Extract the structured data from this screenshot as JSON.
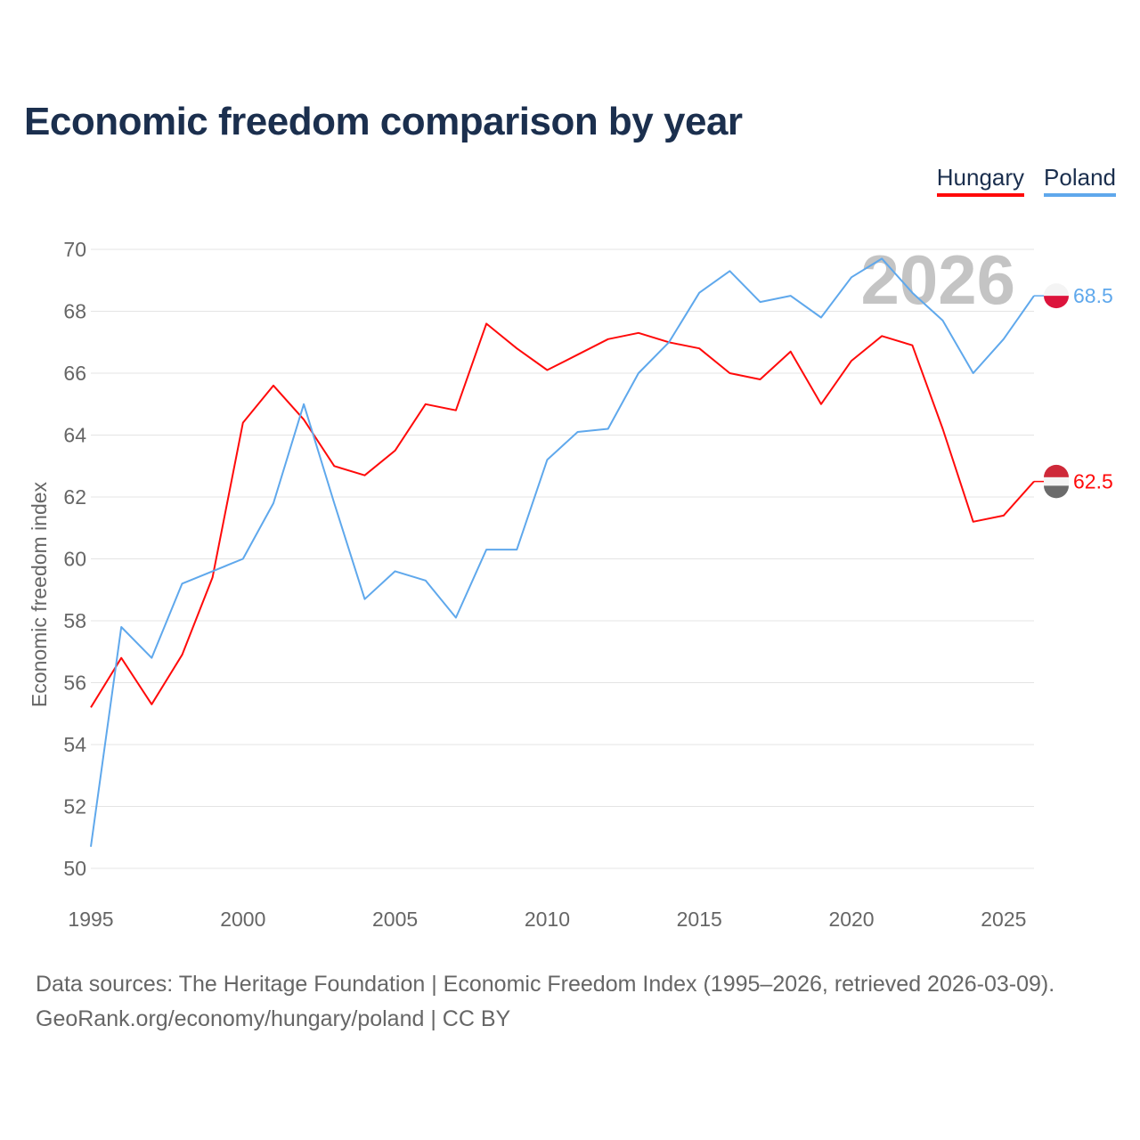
{
  "chart_data": {
    "type": "line",
    "title": "Economic freedom comparison by year",
    "xlabel": "",
    "ylabel": "Economic freedom index",
    "xlim": [
      1995,
      2026
    ],
    "ylim": [
      50,
      70
    ],
    "x_ticks": [
      1995,
      2000,
      2005,
      2010,
      2015,
      2020,
      2025
    ],
    "y_ticks": [
      50,
      52,
      54,
      56,
      58,
      60,
      62,
      64,
      66,
      68,
      70
    ],
    "grid": true,
    "legend_position": "top-right",
    "watermark": "2026",
    "x": [
      1995,
      1996,
      1997,
      1998,
      1999,
      2000,
      2001,
      2002,
      2003,
      2004,
      2005,
      2006,
      2007,
      2008,
      2009,
      2010,
      2011,
      2012,
      2013,
      2014,
      2015,
      2016,
      2017,
      2018,
      2019,
      2020,
      2021,
      2022,
      2023,
      2024,
      2025,
      2026
    ],
    "series": [
      {
        "name": "Hungary",
        "color": "#ff0a0a",
        "end_label": "62.5",
        "values": [
          55.2,
          56.8,
          55.3,
          56.9,
          59.4,
          64.4,
          65.6,
          64.5,
          63.0,
          62.7,
          63.5,
          65.0,
          64.8,
          67.6,
          66.8,
          66.1,
          66.6,
          67.1,
          67.3,
          67.0,
          66.8,
          66.0,
          65.8,
          66.7,
          65.0,
          66.4,
          67.2,
          66.9,
          64.2,
          61.2,
          61.4,
          62.5
        ]
      },
      {
        "name": "Poland",
        "color": "#5fa8ec",
        "end_label": "68.5",
        "values": [
          50.7,
          57.8,
          56.8,
          59.2,
          59.6,
          60.0,
          61.8,
          65.0,
          61.8,
          58.7,
          59.6,
          59.3,
          58.1,
          60.3,
          60.3,
          63.2,
          64.1,
          64.2,
          66.0,
          67.0,
          68.6,
          69.3,
          68.3,
          68.5,
          67.8,
          69.1,
          69.7,
          68.6,
          67.7,
          66.0,
          67.1,
          68.5
        ]
      }
    ]
  },
  "footer": {
    "line1": "Data sources: The Heritage Foundation | Economic Freedom Index (1995–2026, retrieved 2026-03-09).",
    "line2": "GeoRank.org/economy/hungary/poland | CC BY"
  }
}
